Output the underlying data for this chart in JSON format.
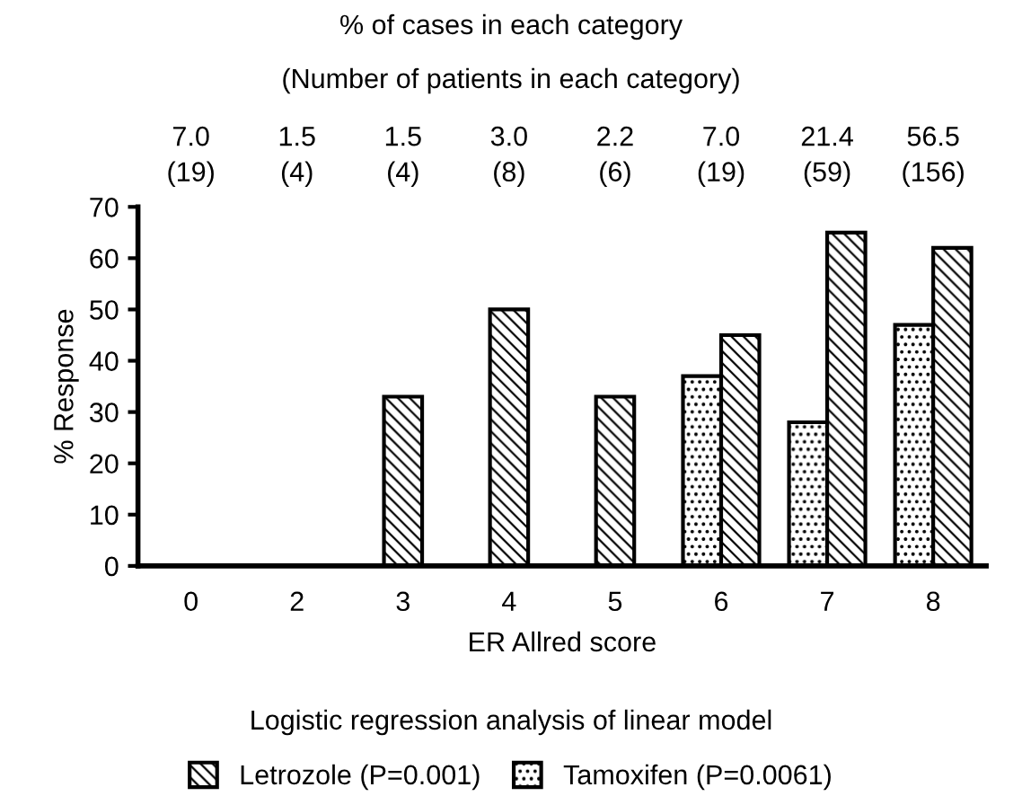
{
  "chart_data": {
    "type": "bar",
    "title": "% of cases in each category",
    "subtitle": "(Number of patients in each category)",
    "xlabel": "ER Allred score",
    "ylabel": "% Response",
    "categories": [
      "0",
      "2",
      "3",
      "4",
      "5",
      "6",
      "7",
      "8"
    ],
    "series": [
      {
        "name": "Tamoxifen (P=0.0061)",
        "color": "#000000",
        "values": [
          null,
          null,
          null,
          null,
          null,
          37,
          28,
          47
        ]
      },
      {
        "name": "Letrozole (P=0.001)",
        "color": "#000000",
        "values": [
          0,
          0,
          33,
          50,
          33,
          45,
          65,
          62
        ]
      }
    ],
    "ylim": [
      0,
      70
    ],
    "yticks": [
      0,
      10,
      20,
      30,
      40,
      50,
      60,
      70
    ],
    "grid": false,
    "legend": "bottom",
    "annotations": [
      "7.0\n(19)",
      "1.5\n(4)",
      "1.5\n(4)",
      "3.0\n(8)",
      "2.2\n(6)",
      "7.0\n(19)",
      "21.4\n(59)",
      "56.5\n(156)",
      "Logistic regression analysis of linear model"
    ]
  }
}
